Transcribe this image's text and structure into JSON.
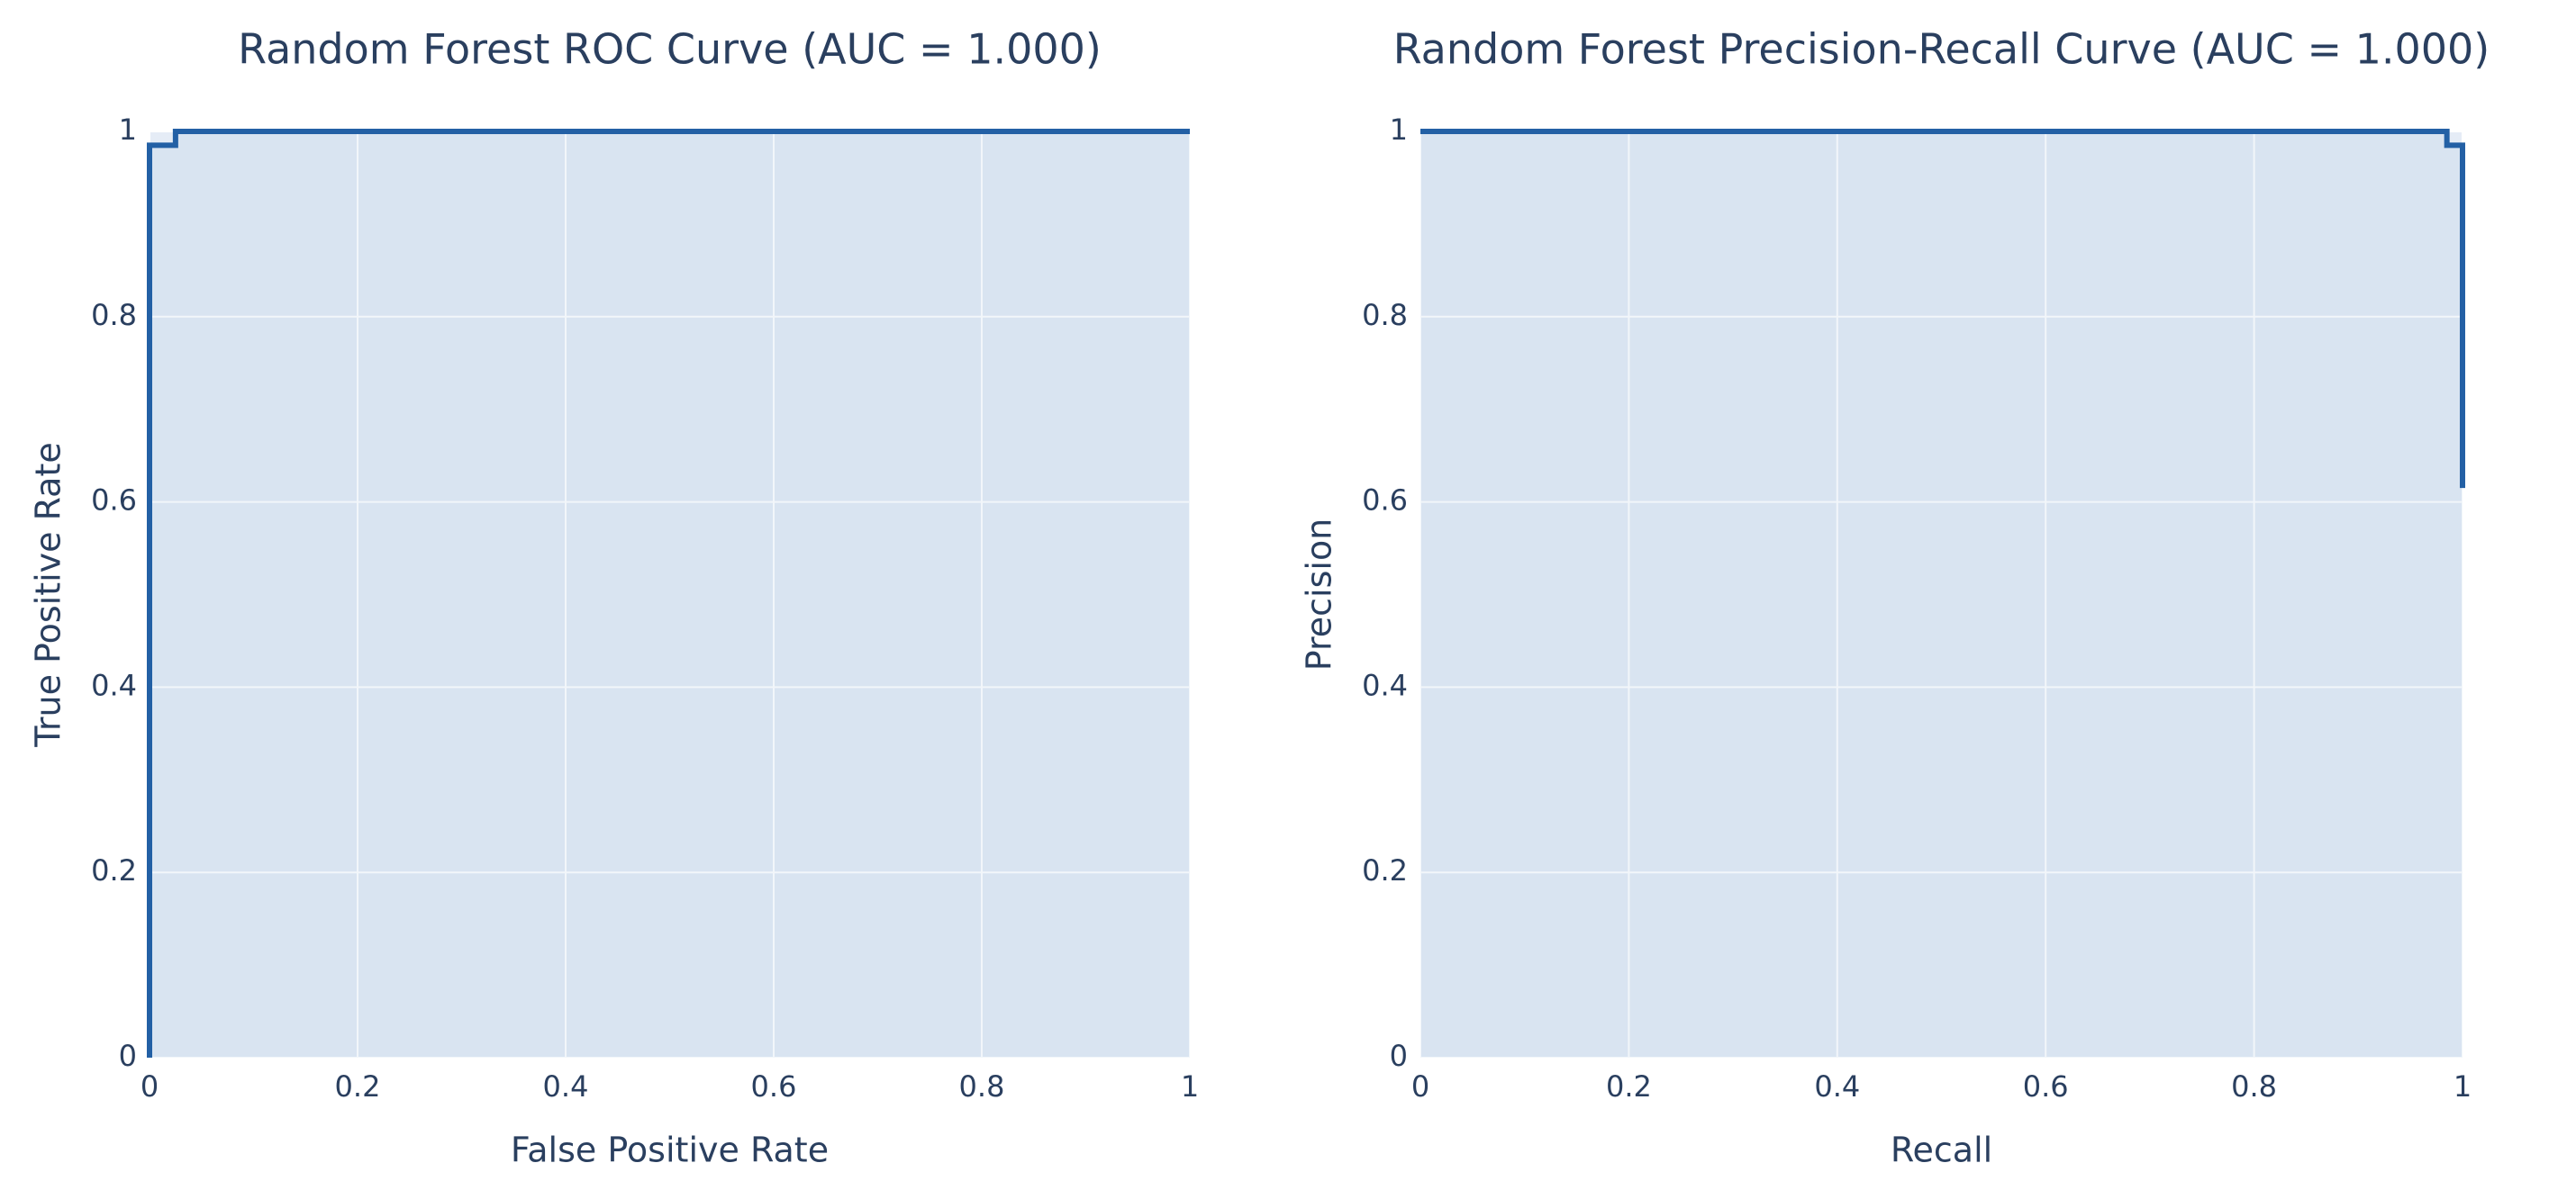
{
  "chart_data": [
    {
      "type": "line",
      "title": "Random Forest ROC Curve (AUC = 1.000)",
      "xlabel": "False Positive Rate",
      "ylabel": "True Positive Rate",
      "x": [
        0,
        0,
        0.025,
        0.025,
        1
      ],
      "values": [
        0,
        0.985,
        0.985,
        1,
        1
      ],
      "color": "#2360a5",
      "area": true,
      "xlim": [
        0,
        1
      ],
      "ylim": [
        0,
        1
      ],
      "xticks": [
        0,
        0.2,
        0.4,
        0.6,
        0.8,
        1
      ],
      "yticks": [
        0,
        0.2,
        0.4,
        0.6,
        0.8,
        1
      ],
      "grid": true
    },
    {
      "type": "line",
      "title": "Random Forest Precision-Recall Curve (AUC = 1.000)",
      "xlabel": "Recall",
      "ylabel": "Precision",
      "x": [
        0,
        0.985,
        0.985,
        1,
        1
      ],
      "values": [
        1,
        1,
        0.985,
        0.985,
        0.615
      ],
      "color": "#2360a5",
      "area": true,
      "xlim": [
        0,
        1
      ],
      "ylim": [
        0,
        1
      ],
      "xticks": [
        0,
        0.2,
        0.4,
        0.6,
        0.8,
        1
      ],
      "yticks": [
        0,
        0.2,
        0.4,
        0.6,
        0.8,
        1
      ],
      "grid": true
    }
  ]
}
